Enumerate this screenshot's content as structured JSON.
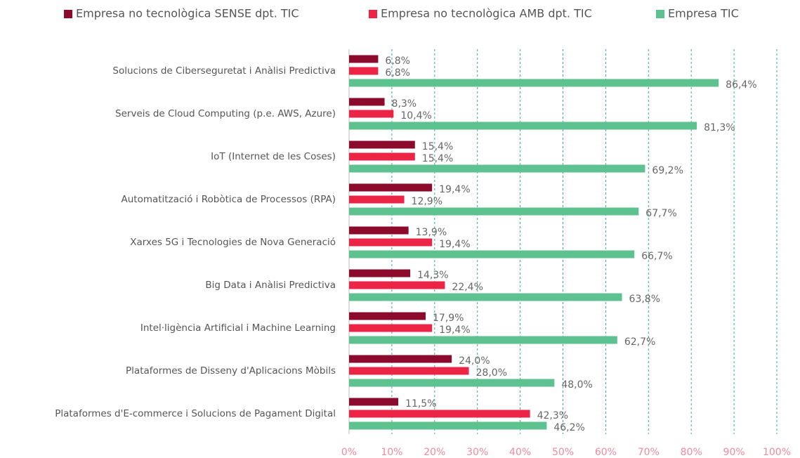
{
  "chart_data": {
    "type": "hbar",
    "categories": [
      "Solucions de Ciberseguretat i Anàlisi Predictiva",
      "Serveis de Cloud Computing (p.e. AWS, Azure)",
      "IoT (Internet de les Coses)",
      "Automatització i Robòtica de Processos (RPA)",
      "Xarxes 5G i Tecnologies de Nova Generació",
      "Big Data i Anàlisi Predictiva",
      "Intel·ligència Artificial i Machine Learning",
      "Plataformes de Disseny d'Aplicacions Mòbils",
      "Plataformes d'E-commerce i Solucions de Pagament Digital"
    ],
    "series": [
      {
        "name": "Empresa no tecnològica SENSE dpt. TIC",
        "color": "#8c0b2c",
        "values": [
          6.8,
          8.3,
          15.4,
          19.4,
          13.9,
          14.3,
          17.9,
          24.0,
          11.5
        ],
        "value_labels": [
          "6,8%",
          "8,3%",
          "15,4%",
          "19,4%",
          "13,9%",
          "14,3%",
          "17,9%",
          "24,0%",
          "11,5%"
        ]
      },
      {
        "name": "Empresa no tecnològica AMB dpt. TIC",
        "color": "#ec2547",
        "values": [
          6.8,
          10.4,
          15.4,
          12.9,
          19.4,
          22.4,
          19.4,
          28.0,
          42.3
        ],
        "value_labels": [
          "6,8%",
          "10,4%",
          "15,4%",
          "12,9%",
          "19,4%",
          "22,4%",
          "19,4%",
          "28,0%",
          "42,3%"
        ]
      },
      {
        "name": "Empresa TIC",
        "color": "#5ec290",
        "values": [
          86.4,
          81.3,
          69.2,
          67.7,
          66.7,
          63.8,
          62.7,
          48.0,
          46.2
        ],
        "value_labels": [
          "86,4%",
          "81,3%",
          "69,2%",
          "67,7%",
          "66,7%",
          "63,8%",
          "62,7%",
          "48,0%",
          "46,2%"
        ]
      }
    ],
    "xlim": [
      0,
      100
    ],
    "xticks": [
      {
        "value": 0,
        "label": "0%"
      },
      {
        "value": 10,
        "label": "10%"
      },
      {
        "value": 20,
        "label": "20%"
      },
      {
        "value": 30,
        "label": "30%"
      },
      {
        "value": 40,
        "label": "40%"
      },
      {
        "value": 50,
        "label": "50%"
      },
      {
        "value": 60,
        "label": "60%"
      },
      {
        "value": 70,
        "label": "70%"
      },
      {
        "value": 80,
        "label": "80%"
      },
      {
        "value": 90,
        "label": "90%"
      },
      {
        "value": 100,
        "label": "100%"
      }
    ],
    "grid": true,
    "legend": "top"
  }
}
